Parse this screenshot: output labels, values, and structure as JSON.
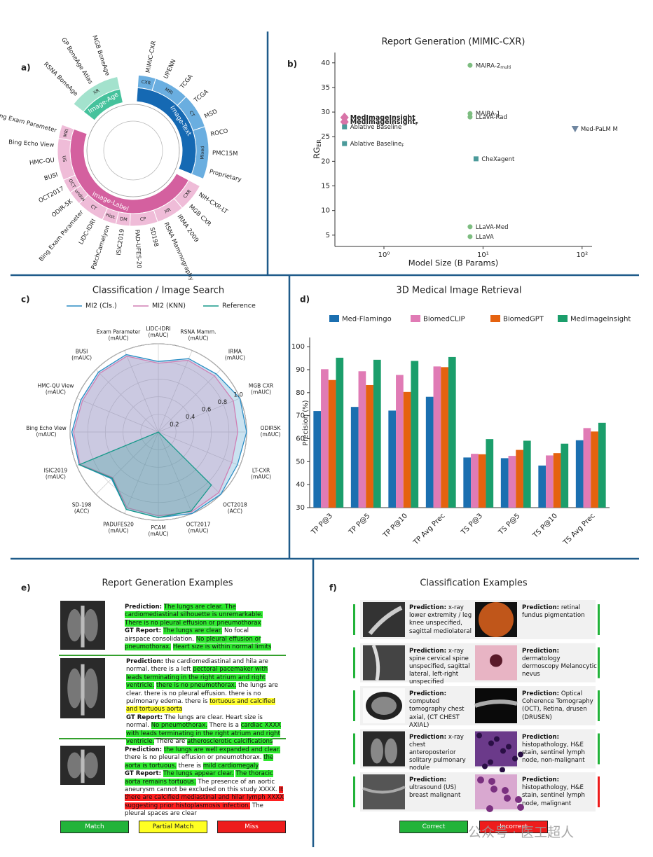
{
  "chart_data": [
    {
      "panel_label": "a)",
      "type": "sunburst",
      "groups": [
        {
          "name": "Image-Age",
          "color": "#45c29c",
          "light": "#a3e2cd",
          "modalities": [
            {
              "name": "XR",
              "datasets": [
                "RSNA BoneAge",
                "GP BoneAge Atlas",
                "MGB BoneAge"
              ]
            }
          ]
        },
        {
          "name": "Image-Text",
          "color": "#1569b3",
          "light": "#6aaee0",
          "modalities": [
            {
              "name": "CXR",
              "datasets": [
                "MIMIC-CXR"
              ]
            },
            {
              "name": "MRI",
              "datasets": [
                "UPENN",
                "TCGA"
              ]
            },
            {
              "name": "CT",
              "datasets": [
                "TCGA",
                "MSD"
              ]
            },
            {
              "name": "Mixed",
              "datasets": [
                "ROCO",
                "PMC15M",
                "Proprietary"
              ]
            }
          ]
        },
        {
          "name": "Image-Label",
          "color": "#d4609f",
          "light": "#efbcd8",
          "modalities": [
            {
              "name": "CXR",
              "datasets": [
                "NIH-CXR-LT",
                "MGB CXR"
              ]
            },
            {
              "name": "XR",
              "datasets": [
                "IRMA 2009",
                "RSNA Mammography"
              ]
            },
            {
              "name": "CP",
              "datasets": [
                "SD198",
                "PAD-UFES-20"
              ]
            },
            {
              "name": "DM",
              "datasets": [
                "ISIC2019"
              ]
            },
            {
              "name": "Hist.",
              "datasets": [
                "PatchCamelyon"
              ]
            },
            {
              "name": "CT",
              "datasets": [
                "LIDC-IDRI",
                "Bing Exam Parameter"
              ]
            },
            {
              "name": "Fundus",
              "datasets": [
                "ODIR-5K"
              ]
            },
            {
              "name": "OCT",
              "datasets": [
                "OCT2017"
              ]
            },
            {
              "name": "US",
              "datasets": [
                "BUSI",
                "HMC-QU",
                "Bing Echo View"
              ]
            },
            {
              "name": "MRI",
              "datasets": [
                "Bing Exam Parameter"
              ]
            }
          ]
        }
      ]
    },
    {
      "panel_label": "b)",
      "type": "scatter",
      "title": "Report Generation (MIMIC-CXR)",
      "x_label": "Model Size (B Params)",
      "y_label": {
        "text": "RG",
        "sub": "ER"
      },
      "log_x": true,
      "xlim": [
        0.32,
        126
      ],
      "ylim": [
        2.7,
        42.1
      ],
      "xticks": [
        {
          "value": 1,
          "label": "10⁰"
        },
        {
          "value": 10,
          "label": "10¹"
        },
        {
          "value": 100,
          "label": "10²"
        }
      ],
      "yticks": [
        5,
        10,
        15,
        20,
        25,
        30,
        35,
        40
      ],
      "points": [
        {
          "name": "MAIRA-2",
          "sub": "multi",
          "x": 7.4,
          "y": 39.5,
          "marker": "circle",
          "color": "#7dbd80"
        },
        {
          "name": "MedImageInsight",
          "x": 0.4,
          "y": 28.9,
          "marker": "diamond",
          "color": "#d874a8",
          "bold": true
        },
        {
          "name": "MedImageInsight",
          "sub": "F",
          "x": 0.4,
          "y": 28.0,
          "marker": "diamond",
          "color": "#d874a8",
          "bold": true
        },
        {
          "name": "Ablative Baseline",
          "x": 0.4,
          "y": 27.0,
          "marker": "square",
          "color": "#4b9a9a"
        },
        {
          "name": "Ablative Baseline",
          "sub": "F",
          "x": 0.4,
          "y": 23.6,
          "marker": "square",
          "color": "#4b9a9a"
        },
        {
          "name": "MAIRA-1",
          "x": 7.4,
          "y": 29.7,
          "marker": "circle",
          "color": "#7dbd80"
        },
        {
          "name": "LLaVA-Rad",
          "x": 7.4,
          "y": 29.0,
          "marker": "circle",
          "color": "#7dbd80"
        },
        {
          "name": "Med-PaLM M",
          "x": 85,
          "y": 26.6,
          "marker": "triangle",
          "color": "#6f86a0"
        },
        {
          "name": "CheXagent",
          "x": 8.5,
          "y": 20.5,
          "marker": "square",
          "color": "#4b9a9a"
        },
        {
          "name": "LLaVA-Med",
          "x": 7.4,
          "y": 6.7,
          "marker": "circle",
          "color": "#7dbd80"
        },
        {
          "name": "LLaVA",
          "x": 7.4,
          "y": 4.7,
          "marker": "circle",
          "color": "#7dbd80"
        }
      ]
    },
    {
      "panel_label": "c)",
      "type": "radar",
      "title": "Classification / Image Search",
      "categories": [
        "LIDC-IDRI",
        "RSNA Mamm.",
        "IRMA",
        "MGB CXR",
        "ODIR5K",
        "LT-CXR",
        "OCT2018",
        "OCT2017",
        "PCAM",
        "PADUFES20",
        "SD-198",
        "ISIC2019",
        "Bing Echo View",
        "HMC-QU View",
        "BUSI",
        "Exam Parameter"
      ],
      "metrics": [
        "(mAUC)",
        "(mAUC)",
        "(mAUC)",
        "(mAUC)",
        "(mAUC)",
        "(mAUC)",
        "(ACC)",
        "(mAUC)",
        "(mAUC)",
        "(mAUC)",
        "(ACC)",
        "(mAUC)",
        "(mAUC)",
        "(mAUC)",
        "(mAUC)",
        "(mAUC)"
      ],
      "rlim": [
        0,
        1
      ],
      "rticks": [
        0.2,
        0.4,
        0.6,
        0.8,
        {
          "value": 1,
          "label": "1.0"
        }
      ],
      "series": [
        {
          "name": "MI2 (Cls.)",
          "color": "#2a8cc4",
          "values": [
            0.8,
            0.9,
            0.93,
            1.0,
            1.0,
            0.97,
            1.0,
            1.0,
            0.97,
            0.95,
            0.75,
            0.97,
            0.98,
            0.95,
            0.96,
            0.95
          ]
        },
        {
          "name": "MI2 (KNN)",
          "color": "#d07fb4",
          "values": [
            0.78,
            0.88,
            0.9,
            0.92,
            0.9,
            0.9,
            0.97,
            0.98,
            0.95,
            0.93,
            0.73,
            0.96,
            0.96,
            0.93,
            0.94,
            0.93
          ]
        },
        {
          "name": "Reference",
          "color": "#17998a",
          "values": [
            0,
            0,
            0,
            0,
            0,
            0,
            0.85,
            0.97,
            0.97,
            0.95,
            0.74,
            0.97,
            0,
            0,
            0,
            0
          ]
        }
      ]
    },
    {
      "panel_label": "d)",
      "type": "bar",
      "title": "3D Medical Image Retrieval",
      "y_label": "Precision (%)",
      "categories": [
        "TP P@3",
        "TP P@5",
        "TP P@10",
        "TP Avg Prec",
        "TS P@3",
        "TS P@5",
        "TS P@10",
        "TS Avg Prec"
      ],
      "ylim": [
        30,
        104
      ],
      "yticks": [
        30,
        40,
        50,
        60,
        70,
        80,
        90,
        100
      ],
      "series": [
        {
          "name": "Med-Flamingo",
          "color": "#1b6fb0",
          "values": [
            72,
            73.8,
            72.2,
            78.2,
            51.8,
            51.5,
            48.3,
            59.3
          ]
        },
        {
          "name": "BiomedCLIP",
          "color": "#e07bb5",
          "values": [
            90.2,
            89.3,
            87.7,
            91.4,
            53.4,
            52.5,
            52.7,
            64.6
          ]
        },
        {
          "name": "BiomedGPT",
          "color": "#e5620f",
          "values": [
            85.5,
            83.3,
            80.3,
            91.1,
            53.2,
            55.1,
            53.7,
            63.1
          ]
        },
        {
          "name": "MedImageInsight",
          "color": "#1b9e6b",
          "values": [
            95.2,
            94.3,
            93.8,
            95.5,
            59.8,
            59.1,
            57.8,
            66.9
          ]
        }
      ]
    }
  ],
  "report_examples": {
    "panel_label": "e)",
    "title": "Report Generation Examples",
    "prediction_label": "Prediction:",
    "gt_label": "GT Report:",
    "colors": {
      "match": "#2ee82e",
      "partial": "#ffff33",
      "miss": "#ff1f1f"
    },
    "examples": [
      {
        "prediction": [
          {
            "text": "The lungs are clear. The cardiomediastinal silhouette is unremarkable.",
            "hl": "match"
          },
          {
            "text": " "
          },
          {
            "text": "There is no pleural effusion or pneumothorax",
            "hl": "match"
          }
        ],
        "gt": [
          {
            "text": "The lungs are clear.",
            "hl": "match"
          },
          {
            "text": " No focal airspace consolidation. "
          },
          {
            "text": "No pleural effusion or pneumothorax.",
            "hl": "match"
          },
          {
            "text": " "
          },
          {
            "text": "Heart size is within normal limits",
            "hl": "match"
          }
        ]
      },
      {
        "prediction": [
          {
            "text": "the cardiomediastinal and hila are normal. there is a left "
          },
          {
            "text": "pectoral pacemaker with leads terminating in the right atrium and right ventricle.",
            "hl": "match"
          },
          {
            "text": " "
          },
          {
            "text": "there is no pneumothorax.",
            "hl": "match"
          },
          {
            "text": " the lungs are clear. there is no pleural effusion. there is no pulmonary edema. there is "
          },
          {
            "text": "tortuous and calcified and tortuous aorta",
            "hl": "partial"
          }
        ],
        "gt": [
          {
            "text": "The lungs are clear. Heart size is normal. "
          },
          {
            "text": "No pneumothorax.",
            "hl": "match"
          },
          {
            "text": " There is a "
          },
          {
            "text": "cardiac XXXX with leads terminating in the right atrium and right ventricle.",
            "hl": "match"
          },
          {
            "text": " There are "
          },
          {
            "text": "atherosclerotic calcifications",
            "hl": "match"
          }
        ]
      },
      {
        "prediction": [
          {
            "text": "the lungs are well expanded and clear.",
            "hl": "match"
          },
          {
            "text": " there is no pleural effusion or pneumothorax. "
          },
          {
            "text": "the aorta is tortuous.",
            "hl": "match"
          },
          {
            "text": " there is "
          },
          {
            "text": "mild cardiomegaly",
            "hl": "match"
          }
        ],
        "gt": [
          {
            "text": "The lungs appear clear.",
            "hl": "match"
          },
          {
            "text": " "
          },
          {
            "text": "The thoracic aorta remains tortuous.",
            "hl": "match"
          },
          {
            "text": " The presence of an aortic aneurysm cannot be excluded on this study XXXX. "
          },
          {
            "text": "It there are calcified mediastinal and hilar lymph XXXX suggesting prior histoplasmosis infection.",
            "hl": "miss"
          },
          {
            "text": " The pleural spaces are clear"
          }
        ]
      }
    ],
    "legend": [
      {
        "name": "Match",
        "hl": "match",
        "fill": "#22b33a"
      },
      {
        "name": "Partial Match",
        "hl": "partial",
        "fill": "#ffff22"
      },
      {
        "name": "Miss",
        "hl": "miss",
        "fill": "#ee1c1c"
      }
    ]
  },
  "classification_examples": {
    "panel_label": "f)",
    "title": "Classification Examples",
    "prediction_label": "Prediction:",
    "colors": {
      "correct": "#22b33a",
      "incorrect": "#ee1c1c"
    },
    "items": [
      {
        "text": "x-ray lower extremity / leg knee unspecified, sagittal mediolateral",
        "correct": true
      },
      {
        "text": "retinal fundus pigmentation",
        "correct": true
      },
      {
        "text": "x-ray spine cervical spine unspecified, sagittal lateral, left-right unspecified",
        "correct": true
      },
      {
        "text": "dermatology dermoscopy Melanocytic nevus",
        "correct": true
      },
      {
        "text": "computed tomography chest axial, (CT CHEST AXIAL)",
        "correct": true
      },
      {
        "text": "Optical Coherence Tomography (OCT), Retina, drusen (DRUSEN)",
        "correct": true
      },
      {
        "text": "x-ray chest anteroposterior solitary pulmonary nodule",
        "correct": true
      },
      {
        "text": "histopathology, H&E stain, sentinel lymph node, non-malignant",
        "correct": true
      },
      {
        "text": "ultrasound (US) breast malignant",
        "correct": true
      },
      {
        "text": "histopathology, H&E stain, sentinel lymph node, malignant",
        "correct": false
      }
    ],
    "legend": [
      {
        "name": "Correct",
        "correct": true
      },
      {
        "name": "Incorrect",
        "correct": false
      }
    ]
  },
  "watermark": "公众号 · 医工超人"
}
